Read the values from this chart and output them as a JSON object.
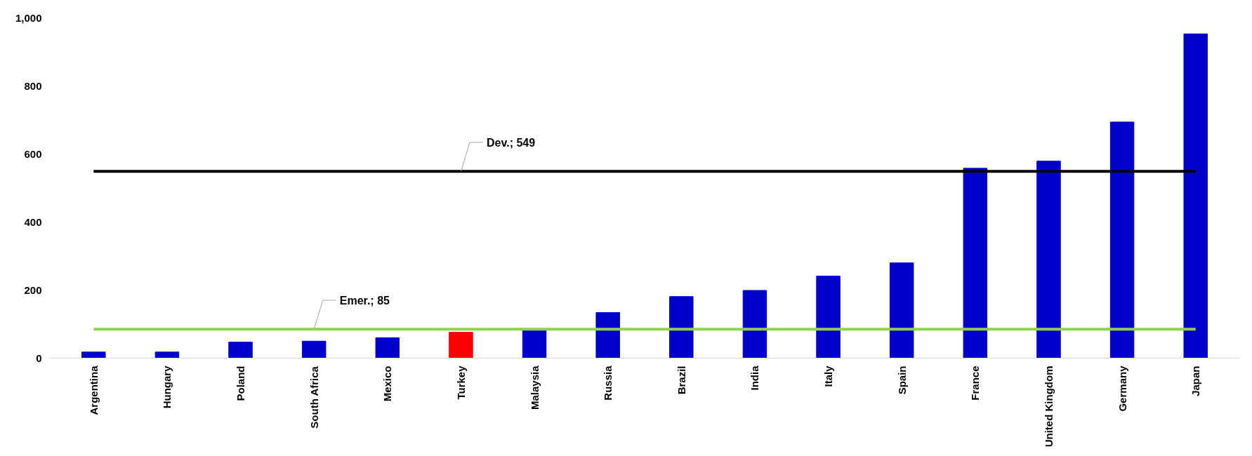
{
  "chart_data": {
    "type": "bar",
    "categories": [
      "Argentina",
      "Hungary",
      "Poland",
      "South Africa",
      "Mexico",
      "Turkey",
      "Malaysia",
      "Russia",
      "Brazil",
      "India",
      "Italy",
      "Spain",
      "France",
      "United Kingdom",
      "Germany",
      "Japan"
    ],
    "values": [
      18,
      18,
      47,
      50,
      60,
      76,
      85,
      134,
      181,
      199,
      241,
      280,
      558,
      579,
      694,
      953
    ],
    "colors": [
      "#0000cc",
      "#0000cc",
      "#0000cc",
      "#0000cc",
      "#0000cc",
      "#ff0000",
      "#0000cc",
      "#0000cc",
      "#0000cc",
      "#0000cc",
      "#0000cc",
      "#0000cc",
      "#0000cc",
      "#0000cc",
      "#0000cc",
      "#0000cc"
    ],
    "ylim": [
      0,
      1000
    ],
    "yticks": [
      0,
      200,
      400,
      600,
      800,
      {
        "value": 1000,
        "label": "1,000"
      }
    ],
    "grid": false,
    "ref_lines": [
      {
        "axis": "y",
        "value": 549,
        "label": "Dev.; 549",
        "color": "#000000"
      },
      {
        "axis": "y",
        "value": 85,
        "label": "Emer.; 85",
        "color": "#92d050"
      }
    ]
  }
}
